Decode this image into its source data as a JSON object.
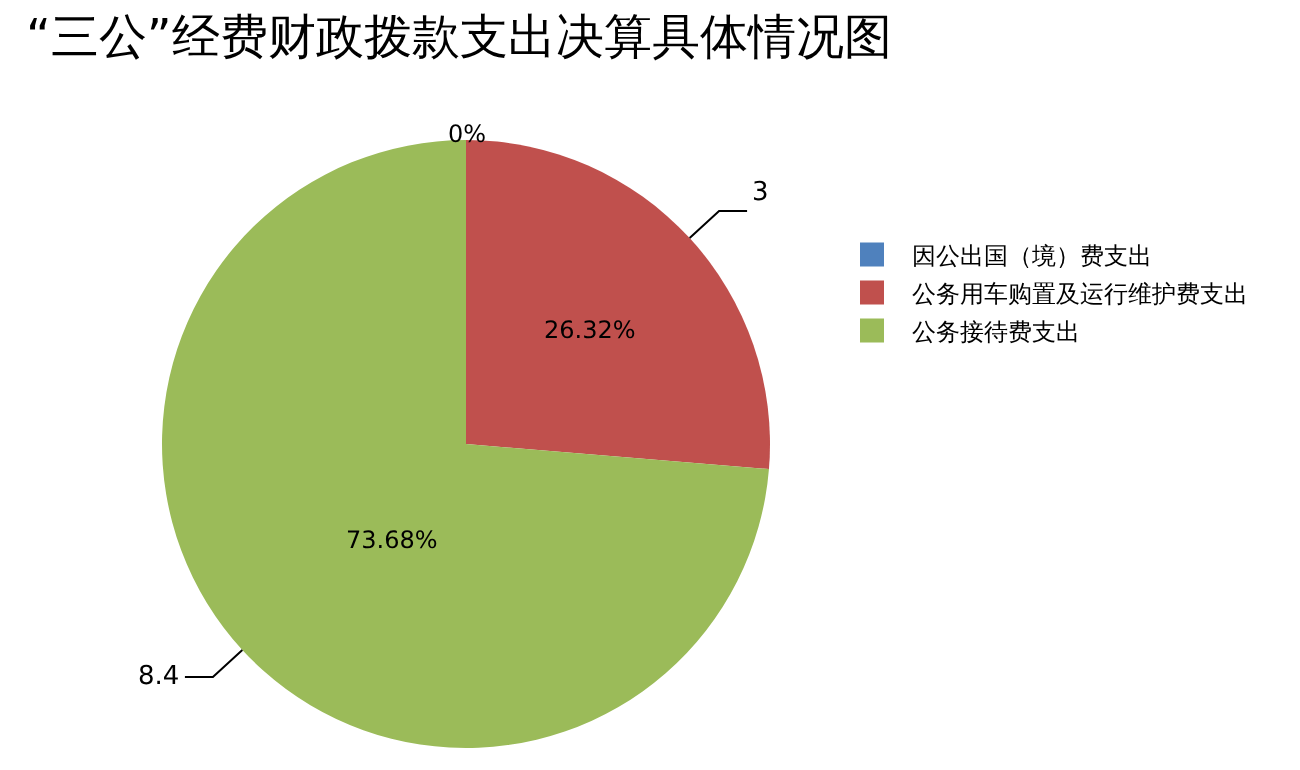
{
  "chart_data": {
    "type": "pie",
    "title": "“三公”经费财政拨款支出决算具体情况图",
    "categories": [
      "因公出国（境）费支出",
      "公务用车购置及运行维护费支出",
      "公务接待费支出"
    ],
    "values": [
      0,
      3,
      8.4
    ],
    "colors": [
      "#4f81bd",
      "#c0504d",
      "#9bbb59"
    ],
    "value_labels": [
      null,
      "3",
      "8.4"
    ],
    "annotations": [
      {
        "text": "0%",
        "x": "因公出国（境）费支出"
      },
      {
        "text": "26.32%",
        "x": "公务用车购置及运行维护费支出"
      },
      {
        "text": "73.68%",
        "x": "公务接待费支出"
      }
    ],
    "legend": "right"
  }
}
